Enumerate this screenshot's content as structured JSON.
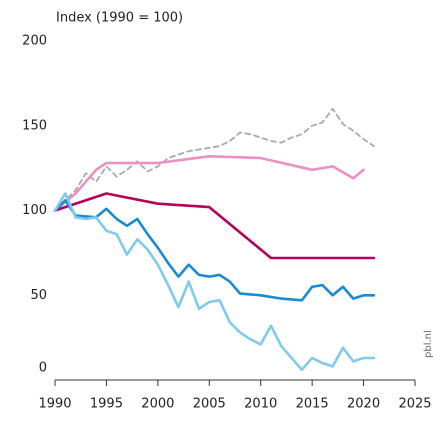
{
  "chart_data": {
    "type": "line",
    "ylabel": "Index (1990 = 100)",
    "watermark": "pbl.nl",
    "xlim": [
      1990,
      2025
    ],
    "xticks": [
      1990,
      1995,
      2000,
      2005,
      2010,
      2015,
      2020,
      2025
    ],
    "ylim": [
      0,
      200
    ],
    "yticks": [
      0,
      50,
      100,
      150,
      200
    ],
    "grid": false,
    "series": [
      {
        "color": "#aaaaaa",
        "dashed": true,
        "x": [
          1990,
          1992,
          1993,
          1994,
          1995,
          1996,
          1997,
          1998,
          1999,
          2000,
          2001,
          2002,
          2003,
          2004,
          2005,
          2006,
          2007,
          2008,
          2009,
          2010,
          2011,
          2012,
          2013,
          2014,
          2015,
          2016,
          2017,
          2018,
          2019,
          2020,
          2021
        ],
        "values": [
          100,
          112,
          122,
          117,
          126,
          120,
          124,
          129,
          123,
          126,
          131,
          133,
          135,
          136,
          137,
          138,
          141,
          146,
          145,
          143,
          141,
          140,
          143,
          145,
          150,
          152,
          160,
          151,
          147,
          142,
          138
        ]
      },
      {
        "color": "#ee8fc4",
        "dashed": false,
        "x": [
          1990,
          1992,
          1994,
          1995,
          2000,
          2005,
          2010,
          2015,
          2017,
          2019,
          2020
        ],
        "values": [
          100,
          110,
          124,
          128,
          128,
          132,
          131,
          124,
          126,
          119,
          124
        ]
      },
      {
        "color": "#b5005b",
        "dashed": false,
        "x": [
          1990,
          1995,
          2000,
          2005,
          2011,
          2021
        ],
        "values": [
          100,
          110,
          104,
          102,
          72,
          72
        ]
      },
      {
        "color": "#1a8ad4",
        "dashed": false,
        "x": [
          1990,
          1991,
          1992,
          1994,
          1995,
          1996,
          1997,
          1998,
          1999,
          2000,
          2001,
          2002,
          2003,
          2004,
          2005,
          2006,
          2007,
          2008,
          2010,
          2012,
          2014,
          2015,
          2016,
          2017,
          2018,
          2019,
          2020,
          2021
        ],
        "values": [
          100,
          106,
          97,
          96,
          101,
          95,
          91,
          95,
          86,
          78,
          69,
          61,
          68,
          62,
          61,
          62,
          58,
          51,
          50,
          48,
          47,
          55,
          56,
          50,
          55,
          48,
          50,
          50
        ]
      },
      {
        "color": "#7fcaef",
        "dashed": false,
        "x": [
          1990,
          1991,
          1992,
          1993,
          1994,
          1995,
          1996,
          1997,
          1998,
          1999,
          2000,
          2001,
          2002,
          2003,
          2004,
          2005,
          2006,
          2007,
          2008,
          2009,
          2010,
          2011,
          2012,
          2013,
          2014,
          2015,
          2016,
          2017,
          2018,
          2019,
          2020,
          2021
        ],
        "values": [
          100,
          110,
          96,
          95,
          96,
          88,
          86,
          74,
          83,
          77,
          68,
          56,
          43,
          58,
          42,
          46,
          47,
          34,
          28,
          24,
          21,
          32,
          20,
          13,
          6,
          13,
          10,
          8,
          19,
          11,
          13,
          13
        ]
      }
    ]
  }
}
